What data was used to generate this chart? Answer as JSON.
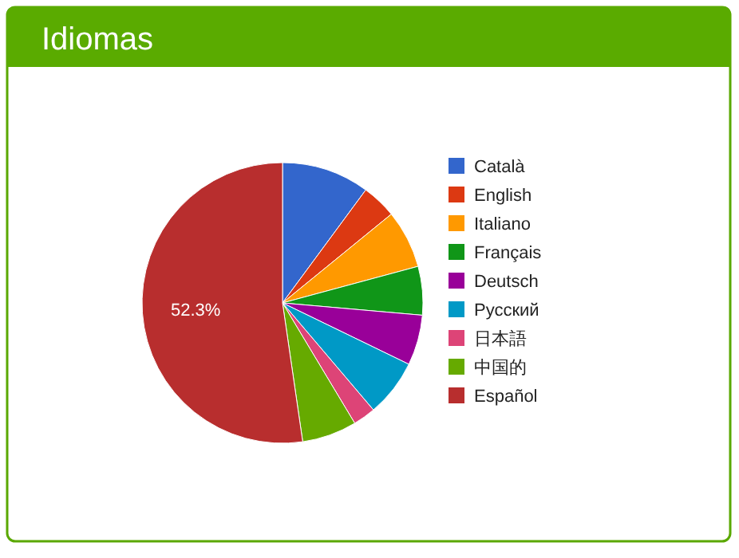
{
  "chart_data": {
    "type": "pie",
    "title": "Idiomas",
    "categories": [
      "Català",
      "English",
      "Italiano",
      "Français",
      "Deutsch",
      "Русский",
      "日本語",
      "中国的",
      "Español"
    ],
    "values": [
      10.1,
      4.0,
      6.7,
      5.6,
      5.8,
      6.6,
      2.6,
      6.3,
      52.3
    ],
    "colors": [
      "#3366cc",
      "#dc3912",
      "#ff9900",
      "#109618",
      "#990099",
      "#0099c6",
      "#dd4477",
      "#66aa00",
      "#b82e2e"
    ],
    "value_labels": [
      null,
      null,
      null,
      null,
      null,
      null,
      null,
      null,
      "52.3%"
    ],
    "legend": "right"
  }
}
